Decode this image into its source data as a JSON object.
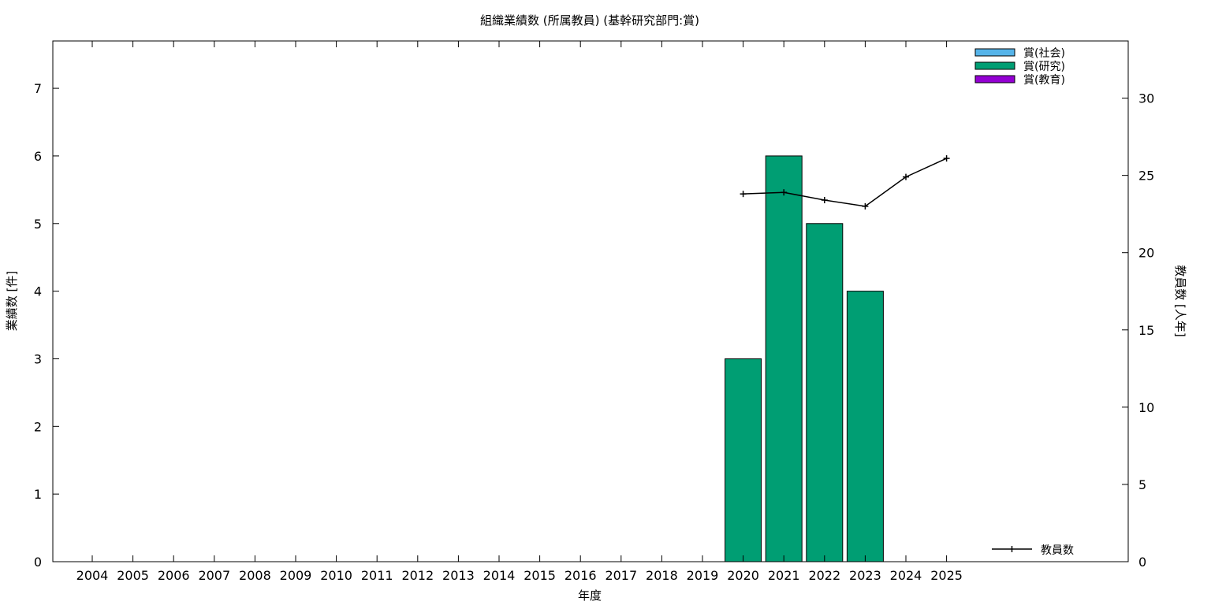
{
  "chart_data": {
    "type": "bar",
    "title": "組織業績数 (所属教員) (基幹研究部門:賞)",
    "xlabel": "年度",
    "ylabel": "業績数 [件]",
    "y2label": "教員数 [人年]",
    "categories": [
      "2004",
      "2005",
      "2006",
      "2007",
      "2008",
      "2009",
      "2010",
      "2011",
      "2012",
      "2013",
      "2014",
      "2015",
      "2016",
      "2017",
      "2018",
      "2019",
      "2020",
      "2021",
      "2022",
      "2023",
      "2024",
      "2025"
    ],
    "ylim": [
      0,
      7.7
    ],
    "y2lim": [
      0,
      33.7
    ],
    "yticks": [
      0,
      1,
      2,
      3,
      4,
      5,
      6,
      7
    ],
    "y2ticks": [
      0,
      5,
      10,
      15,
      20,
      25,
      30
    ],
    "grid": false,
    "legend_position": "top-right",
    "series": [
      {
        "name": "賞(社会)",
        "color": "#56b4e9",
        "values": [
          0,
          0,
          0,
          0,
          0,
          0,
          0,
          0,
          0,
          0,
          0,
          0,
          0,
          0,
          0,
          0,
          0,
          0,
          0,
          0,
          0,
          0
        ]
      },
      {
        "name": "賞(研究)",
        "color": "#009e73",
        "values": [
          0,
          0,
          0,
          0,
          0,
          0,
          0,
          0,
          0,
          0,
          0,
          0,
          0,
          0,
          0,
          0,
          3,
          6,
          5,
          4,
          0,
          0
        ]
      },
      {
        "name": "賞(教育)",
        "color": "#9400d3",
        "values": [
          0,
          0,
          0,
          0,
          0,
          0,
          0,
          0,
          0,
          0,
          0,
          0,
          0,
          0,
          0,
          0,
          0,
          0,
          0,
          0,
          0,
          0
        ]
      }
    ],
    "line_series": {
      "name": "教員数",
      "color": "#000000",
      "axis": "y2",
      "x": [
        "2020",
        "2021",
        "2022",
        "2023",
        "2024",
        "2025"
      ],
      "values": [
        23.8,
        23.9,
        23.4,
        23.0,
        24.9,
        26.1
      ]
    }
  }
}
